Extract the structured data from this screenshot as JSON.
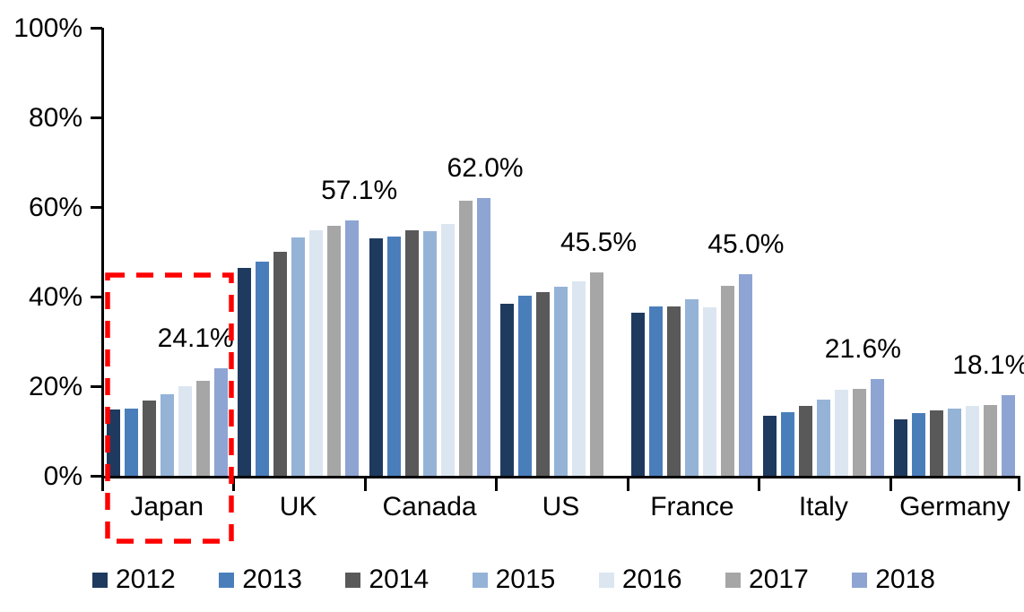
{
  "chart_data": {
    "type": "bar",
    "title": "",
    "xlabel": "",
    "ylabel": "",
    "ylim": [
      0,
      100
    ],
    "grid": false,
    "legend_position": "bottom",
    "categories": [
      "Japan",
      "UK",
      "Canada",
      "US",
      "France",
      "Italy",
      "Germany"
    ],
    "series": [
      {
        "name": "2012",
        "color": "#1F3A5F",
        "values": [
          14.9,
          46.4,
          53.0,
          38.4,
          36.4,
          13.4,
          12.6
        ]
      },
      {
        "name": "2013",
        "color": "#4A7EBB",
        "values": [
          15.1,
          47.8,
          53.5,
          40.2,
          37.8,
          14.2,
          14.0
        ]
      },
      {
        "name": "2014",
        "color": "#595959",
        "values": [
          16.8,
          50.0,
          54.9,
          41.0,
          37.8,
          15.6,
          14.6
        ]
      },
      {
        "name": "2015",
        "color": "#95B3D7",
        "values": [
          18.3,
          53.2,
          54.7,
          42.3,
          39.4,
          17.0,
          15.0
        ]
      },
      {
        "name": "2016",
        "color": "#DCE6F1",
        "values": [
          20.1,
          54.8,
          56.3,
          43.5,
          37.6,
          19.2,
          15.6
        ]
      },
      {
        "name": "2017",
        "color": "#A6A6A6",
        "values": [
          21.3,
          55.8,
          61.5,
          45.5,
          42.4,
          19.4,
          15.8
        ]
      },
      {
        "name": "2018",
        "color": "#8EA4D2",
        "values": [
          24.1,
          57.1,
          62.0,
          null,
          45.0,
          21.6,
          18.1
        ]
      }
    ],
    "data_labels": [
      "24.1%",
      "57.1%",
      "62.0%",
      "45.5%",
      "45.0%",
      "21.6%",
      "18.1%"
    ],
    "y_ticks": [
      {
        "label": "0%",
        "value": 0
      },
      {
        "label": "20%",
        "value": 20
      },
      {
        "label": "40%",
        "value": 40
      },
      {
        "label": "60%",
        "value": 60
      },
      {
        "label": "80%",
        "value": 80
      },
      {
        "label": "100%",
        "value": 100
      }
    ],
    "annotation": {
      "type": "dashed-rectangle",
      "target_category": "Japan",
      "color": "#FF0000"
    },
    "axis_color": "#000000",
    "text_color": "#000000"
  }
}
